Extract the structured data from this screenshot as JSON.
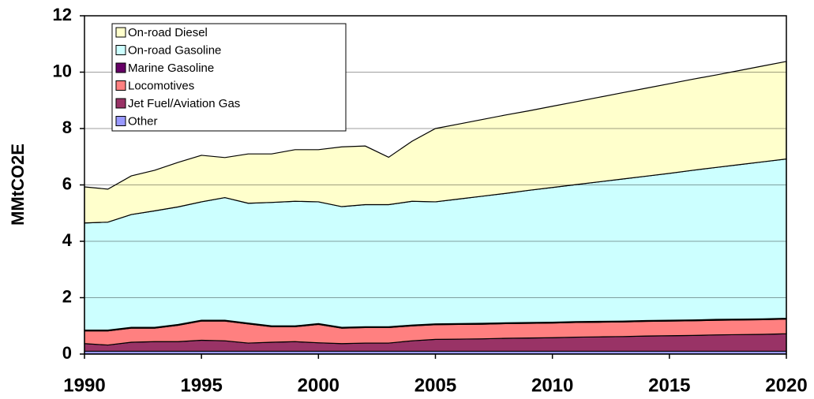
{
  "chart_data": {
    "type": "stacked_area",
    "y_label": "MMtCO2E",
    "x": [
      1990,
      1991,
      1992,
      1993,
      1994,
      1995,
      1996,
      1997,
      1998,
      1999,
      2000,
      2001,
      2002,
      2003,
      2004,
      2005,
      2006,
      2007,
      2008,
      2009,
      2010,
      2011,
      2012,
      2013,
      2014,
      2015,
      2016,
      2017,
      2018,
      2019,
      2020
    ],
    "series": [
      {
        "name": "On-road Diesel",
        "color": "#ffffcc",
        "values": [
          1.28,
          1.17,
          1.37,
          1.44,
          1.58,
          1.65,
          1.42,
          1.75,
          1.72,
          1.83,
          1.85,
          2.12,
          2.08,
          1.68,
          2.13,
          2.6,
          2.66,
          2.72,
          2.78,
          2.82,
          2.88,
          2.94,
          3.0,
          3.06,
          3.12,
          3.18,
          3.23,
          3.28,
          3.34,
          3.4,
          3.46
        ]
      },
      {
        "name": "On-road Gasoline",
        "color": "#ccffff",
        "values": [
          3.8,
          3.83,
          4.0,
          4.13,
          4.17,
          4.2,
          4.35,
          4.25,
          4.38,
          4.42,
          4.32,
          4.28,
          4.33,
          4.33,
          4.39,
          4.33,
          4.42,
          4.51,
          4.59,
          4.69,
          4.78,
          4.86,
          4.95,
          5.04,
          5.12,
          5.21,
          5.31,
          5.39,
          5.48,
          5.57,
          5.65
        ]
      },
      {
        "name": "Marine Gasoline",
        "color": "#660066",
        "values": [
          0.03,
          0.03,
          0.03,
          0.03,
          0.03,
          0.03,
          0.03,
          0.03,
          0.03,
          0.03,
          0.03,
          0.03,
          0.03,
          0.03,
          0.03,
          0.03,
          0.03,
          0.03,
          0.03,
          0.03,
          0.03,
          0.03,
          0.03,
          0.03,
          0.03,
          0.03,
          0.03,
          0.03,
          0.03,
          0.03,
          0.03
        ]
      },
      {
        "name": "Locomotives",
        "color": "#ff8080",
        "values": [
          0.45,
          0.5,
          0.5,
          0.48,
          0.58,
          0.68,
          0.7,
          0.68,
          0.55,
          0.53,
          0.65,
          0.55,
          0.55,
          0.55,
          0.53,
          0.52,
          0.52,
          0.52,
          0.52,
          0.52,
          0.52,
          0.52,
          0.52,
          0.52,
          0.52,
          0.52,
          0.52,
          0.52,
          0.52,
          0.52,
          0.52
        ]
      },
      {
        "name": "Jet Fuel/Aviation Gas",
        "color": "#993366",
        "values": [
          0.27,
          0.22,
          0.32,
          0.34,
          0.34,
          0.39,
          0.37,
          0.29,
          0.32,
          0.34,
          0.3,
          0.27,
          0.29,
          0.29,
          0.37,
          0.42,
          0.43,
          0.44,
          0.46,
          0.47,
          0.48,
          0.5,
          0.51,
          0.52,
          0.54,
          0.55,
          0.56,
          0.58,
          0.59,
          0.6,
          0.62
        ]
      },
      {
        "name": "Other",
        "color": "#9999ff",
        "values": [
          0.1,
          0.1,
          0.1,
          0.1,
          0.1,
          0.1,
          0.1,
          0.1,
          0.1,
          0.1,
          0.1,
          0.1,
          0.1,
          0.1,
          0.1,
          0.1,
          0.1,
          0.1,
          0.1,
          0.1,
          0.1,
          0.1,
          0.1,
          0.1,
          0.1,
          0.1,
          0.1,
          0.1,
          0.1,
          0.1,
          0.1
        ]
      }
    ],
    "xlim": [
      1990,
      2020
    ],
    "xticks": [
      1990,
      1995,
      2000,
      2005,
      2010,
      2015,
      2020
    ],
    "ylim": [
      0,
      12
    ],
    "yticks": [
      0,
      2,
      4,
      6,
      8,
      10,
      12
    ],
    "grid": true,
    "legend": "upper left"
  }
}
